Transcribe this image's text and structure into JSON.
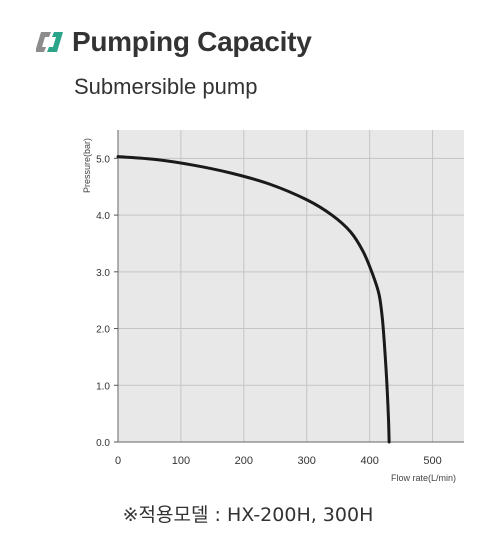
{
  "header": {
    "title": "Pumping Capacity",
    "subtitle": "Submersible pump",
    "logo_icon": "slanted-brackets-icon",
    "logo_colors": [
      "#8c8c8c",
      "#2aa58a"
    ]
  },
  "chart_data": {
    "type": "line",
    "title": "Pumping Capacity",
    "subtitle": "Submersible pump",
    "xlabel": "Flow rate(L/min)",
    "ylabel": "Pressure(bar)",
    "xlim": [
      0,
      550
    ],
    "ylim": [
      0,
      5.5
    ],
    "xticks": [
      0,
      100,
      200,
      300,
      400,
      500
    ],
    "yticks": [
      0.0,
      1.0,
      2.0,
      3.0,
      4.0,
      5.0
    ],
    "xtick_labels": [
      "0",
      "100",
      "200",
      "300",
      "400",
      "500"
    ],
    "ytick_labels": [
      "0.0",
      "1.0",
      "2.0",
      "3.0",
      "4.0",
      "5.0"
    ],
    "grid": true,
    "background_color": "#e8e8e8",
    "grid_color": "#c4c4c4",
    "line_color": "#1a1a1a",
    "series": [
      {
        "x": [
          0,
          60,
          120,
          180,
          240,
          300,
          340,
          370,
          390,
          405,
          415,
          420,
          423,
          426,
          428,
          430,
          431
        ],
        "y": [
          5.03,
          4.98,
          4.88,
          4.74,
          4.55,
          4.27,
          4.0,
          3.7,
          3.35,
          2.95,
          2.6,
          2.2,
          1.8,
          1.3,
          0.9,
          0.4,
          0.0
        ]
      }
    ]
  },
  "footnote": "※적용모델 : HX-200H, 300H"
}
